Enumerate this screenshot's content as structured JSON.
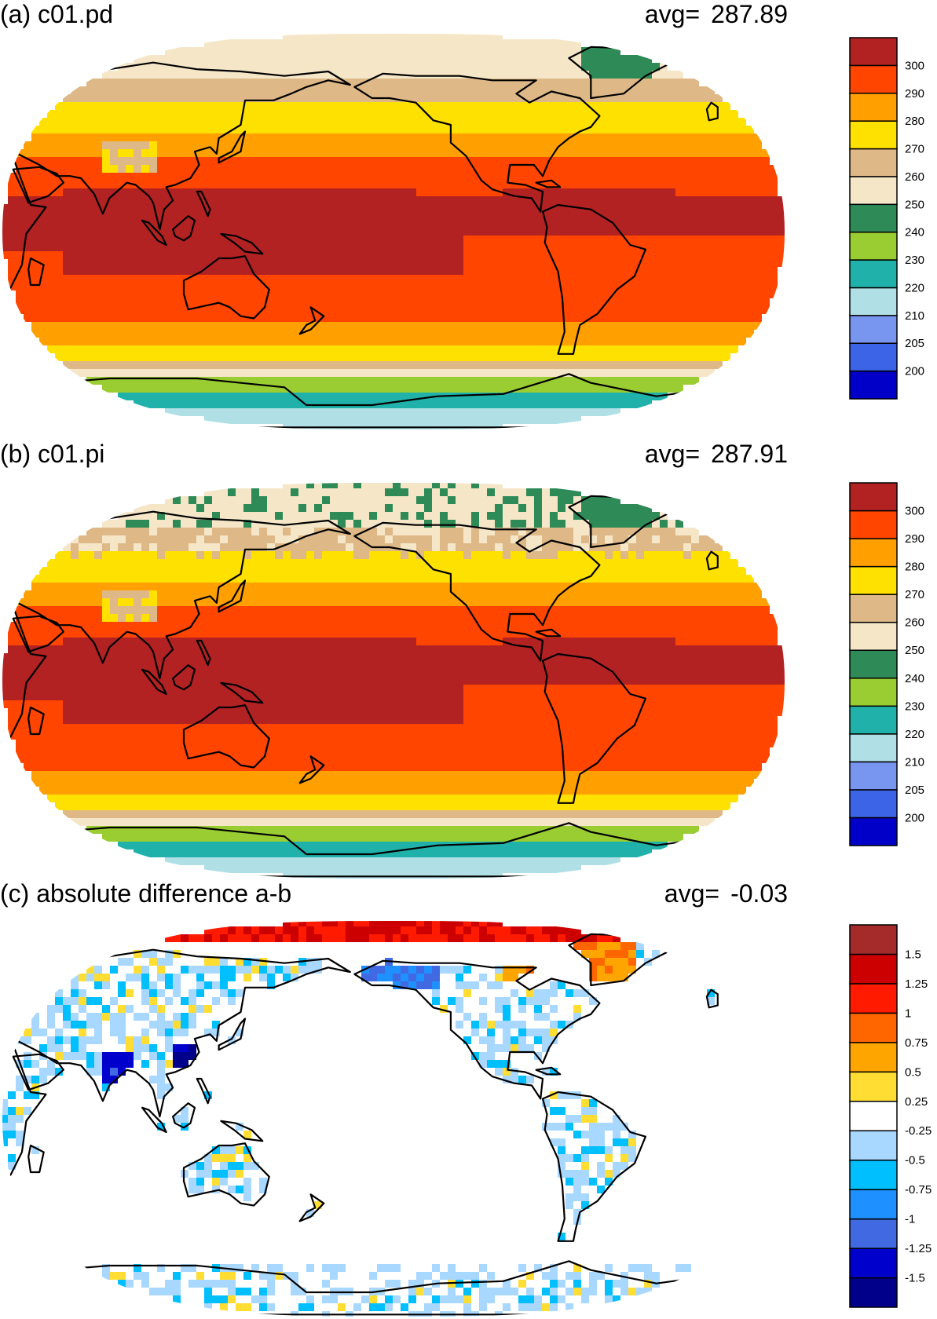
{
  "panels": [
    {
      "title": "(a) c01.pd",
      "avg_label": "avg=",
      "avg_value": "287.89",
      "field": "absolute",
      "colorbar": {
        "colors": [
          "#0000c8",
          "#3c64e6",
          "#7896f0",
          "#b0e0e6",
          "#20b2aa",
          "#9acd32",
          "#2e8b57",
          "#f5e6c8",
          "#deb887",
          "#ffe100",
          "#ffa000",
          "#ff4500",
          "#b22222"
        ],
        "labels": [
          "200",
          "205",
          "210",
          "220",
          "230",
          "240",
          "250",
          "260",
          "270",
          "280",
          "290",
          "300"
        ]
      }
    },
    {
      "title": "(b) c01.pi",
      "avg_label": "avg=",
      "avg_value": "287.91",
      "field": "absolute",
      "colorbar": {
        "colors": [
          "#0000c8",
          "#3c64e6",
          "#7896f0",
          "#b0e0e6",
          "#20b2aa",
          "#9acd32",
          "#2e8b57",
          "#f5e6c8",
          "#deb887",
          "#ffe100",
          "#ffa000",
          "#ff4500",
          "#b22222"
        ],
        "labels": [
          "200",
          "205",
          "210",
          "220",
          "230",
          "240",
          "250",
          "260",
          "270",
          "280",
          "290",
          "300"
        ]
      }
    },
    {
      "title": "(c) absolute difference a-b",
      "avg_label": "avg=",
      "avg_value": "-0.03",
      "field": "difference",
      "colorbar": {
        "colors": [
          "#00008b",
          "#0000cd",
          "#4169e1",
          "#1e90ff",
          "#00bfff",
          "#a8d8ff",
          "#ffffff",
          "#ffdd33",
          "#ffa500",
          "#ff6600",
          "#ff1a00",
          "#cc0000",
          "#a52a2a"
        ],
        "labels": [
          "-1.5",
          "-1.25",
          "-1",
          "-0.75",
          "-0.5",
          "-0.25",
          "0.25",
          "0.5",
          "0.75",
          "1",
          "1.25",
          "1.5"
        ]
      }
    }
  ]
}
